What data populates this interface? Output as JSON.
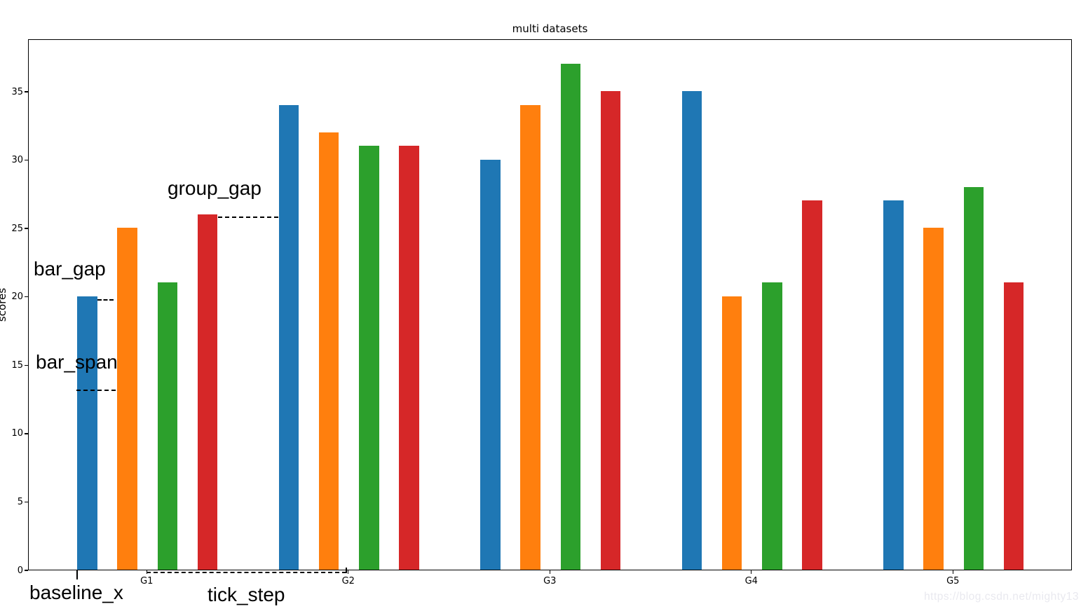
{
  "chart_data": {
    "type": "bar",
    "title": "multi datasets",
    "ylabel": "scores",
    "categories": [
      "G1",
      "G2",
      "G3",
      "G4",
      "G5"
    ],
    "series": [
      {
        "color": "#1f77b4",
        "values": [
          20,
          34,
          30,
          35,
          27
        ]
      },
      {
        "color": "#ff7f0e",
        "values": [
          25,
          32,
          34,
          20,
          25
        ]
      },
      {
        "color": "#2ca02c",
        "values": [
          21,
          31,
          37,
          21,
          28
        ]
      },
      {
        "color": "#d62728",
        "values": [
          26,
          31,
          35,
          27,
          21
        ]
      }
    ],
    "yticks": [
      0,
      5,
      10,
      15,
      20,
      25,
      30,
      35
    ],
    "ylim": [
      0,
      38.85
    ],
    "grid": false,
    "legend": "none"
  },
  "annotations": {
    "bar_gap": "bar_gap",
    "bar_span": "bar_span",
    "group_gap": "group_gap",
    "baseline_x": "baseline_x",
    "tick_step": "tick_step"
  },
  "watermark": "https://blog.csdn.net/mighty13"
}
